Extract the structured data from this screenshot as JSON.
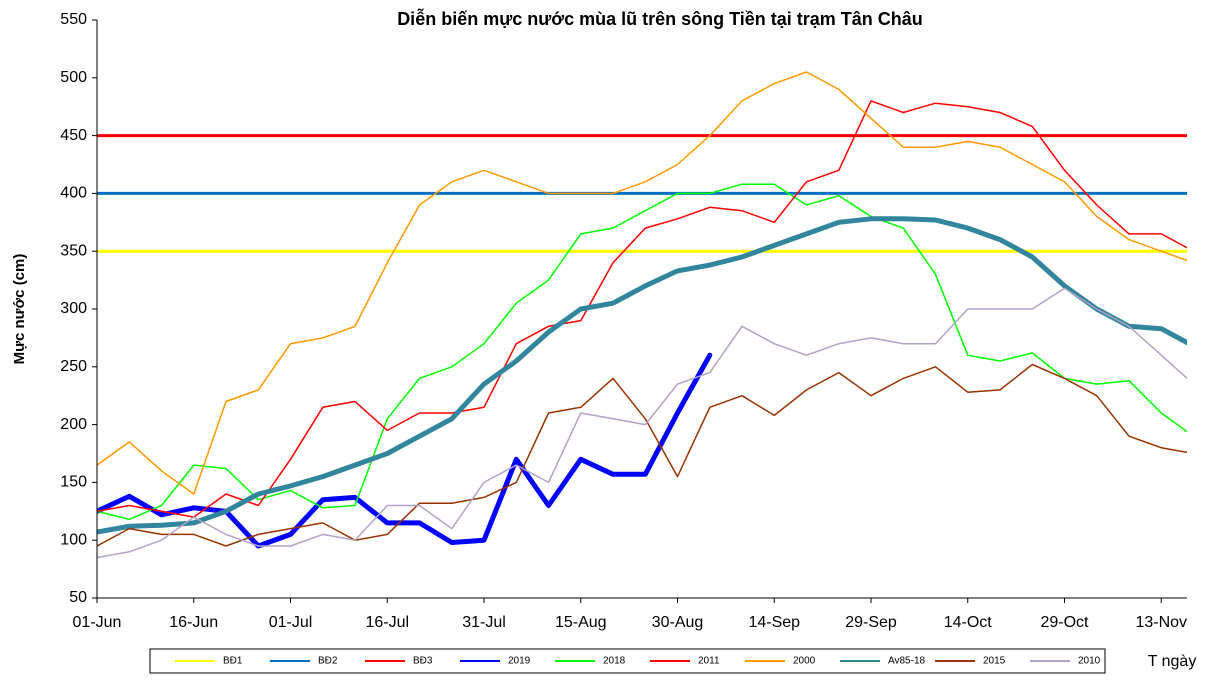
{
  "chart_data": {
    "type": "line",
    "title": "Diễn biến mực nước mùa lũ trên sông Tiền tại trạm Tân Châu",
    "y_label": "Mực nước (cm)",
    "x_label": "T ngày",
    "categories": [
      "01-Jun",
      null,
      null,
      "16-Jun",
      null,
      null,
      "01-Jul",
      null,
      null,
      "16-Jul",
      null,
      null,
      "31-Jul",
      null,
      null,
      "15-Aug",
      null,
      null,
      "30-Aug",
      null,
      null,
      "14-Sep",
      null,
      null,
      "29-Sep",
      null,
      null,
      "14-Oct",
      null,
      null,
      "29-Oct",
      null,
      null,
      "13-Nov",
      null
    ],
    "ylim": [
      50,
      550
    ],
    "yticks": [
      50,
      100,
      150,
      200,
      250,
      300,
      350,
      400,
      450,
      500,
      550
    ],
    "legend": "bottom",
    "series": [
      {
        "name": "BĐ1",
        "color": "#ffff00",
        "line_width": 3,
        "values": [
          350,
          350,
          350,
          350,
          350,
          350,
          350,
          350,
          350,
          350,
          350,
          350,
          350,
          350,
          350,
          350,
          350,
          350,
          350,
          350,
          350,
          350,
          350,
          350,
          350,
          350,
          350,
          350,
          350,
          350,
          350,
          350,
          350,
          350,
          350
        ]
      },
      {
        "name": "BĐ2",
        "color": "#0070c0",
        "line_width": 3,
        "values": [
          400,
          400,
          400,
          400,
          400,
          400,
          400,
          400,
          400,
          400,
          400,
          400,
          400,
          400,
          400,
          400,
          400,
          400,
          400,
          400,
          400,
          400,
          400,
          400,
          400,
          400,
          400,
          400,
          400,
          400,
          400,
          400,
          400,
          400,
          400
        ]
      },
      {
        "name": "BĐ3",
        "color": "#ff0000",
        "line_width": 3,
        "values": [
          450,
          450,
          450,
          450,
          450,
          450,
          450,
          450,
          450,
          450,
          450,
          450,
          450,
          450,
          450,
          450,
          450,
          450,
          450,
          450,
          450,
          450,
          450,
          450,
          450,
          450,
          450,
          450,
          450,
          450,
          450,
          450,
          450,
          450,
          450
        ]
      },
      {
        "name": "2019",
        "color": "#0000ff",
        "line_width": 5,
        "values": [
          125,
          138,
          122,
          128,
          125,
          95,
          105,
          135,
          137,
          115,
          115,
          98,
          100,
          170,
          130,
          170,
          157,
          157,
          210,
          260,
          null,
          null,
          null,
          null,
          null,
          null,
          null,
          null,
          null,
          null,
          null,
          null,
          null,
          null,
          null
        ]
      },
      {
        "name": "2018",
        "color": "#00ff00",
        "line_width": 1.5,
        "values": [
          125,
          118,
          130,
          165,
          162,
          135,
          143,
          128,
          130,
          205,
          240,
          250,
          270,
          305,
          325,
          365,
          370,
          385,
          400,
          400,
          408,
          408,
          390,
          398,
          380,
          370,
          330,
          260,
          255,
          262,
          240,
          235,
          238,
          210,
          190
        ]
      },
      {
        "name": "2011",
        "color": "#ff0000",
        "line_width": 1.5,
        "values": [
          125,
          130,
          125,
          120,
          140,
          130,
          170,
          215,
          220,
          195,
          210,
          210,
          215,
          270,
          285,
          290,
          340,
          370,
          378,
          388,
          385,
          375,
          410,
          420,
          480,
          470,
          478,
          475,
          470,
          458,
          420,
          390,
          365,
          365,
          350
        ]
      },
      {
        "name": "2000",
        "color": "#ff9900",
        "line_width": 1.5,
        "values": [
          165,
          185,
          160,
          140,
          220,
          230,
          270,
          275,
          285,
          340,
          390,
          410,
          420,
          410,
          400,
          400,
          400,
          410,
          425,
          450,
          480,
          495,
          505,
          490,
          465,
          440,
          440,
          445,
          440,
          425,
          410,
          380,
          360,
          350,
          340
        ]
      },
      {
        "name": "Av85-18",
        "color": "#31859c",
        "line_width": 5,
        "values": [
          107,
          112,
          113,
          115,
          125,
          140,
          147,
          155,
          165,
          175,
          190,
          205,
          235,
          255,
          280,
          300,
          305,
          320,
          333,
          338,
          345,
          355,
          365,
          375,
          378,
          378,
          377,
          370,
          360,
          345,
          320,
          300,
          285,
          283,
          268
        ]
      },
      {
        "name": "2015",
        "color": "#993300",
        "line_width": 1.5,
        "values": [
          95,
          110,
          105,
          105,
          95,
          105,
          110,
          115,
          100,
          105,
          132,
          132,
          137,
          150,
          210,
          215,
          240,
          205,
          155,
          215,
          225,
          208,
          230,
          245,
          225,
          240,
          250,
          228,
          230,
          252,
          240,
          225,
          190,
          180,
          175
        ]
      },
      {
        "name": "2010",
        "color": "#b3a2c7",
        "line_width": 1.5,
        "values": [
          85,
          90,
          100,
          120,
          105,
          95,
          95,
          105,
          100,
          130,
          130,
          110,
          150,
          165,
          150,
          210,
          205,
          200,
          235,
          245,
          285,
          270,
          260,
          270,
          275,
          270,
          270,
          300,
          300,
          300,
          318,
          300,
          285,
          260,
          235
        ]
      }
    ]
  }
}
